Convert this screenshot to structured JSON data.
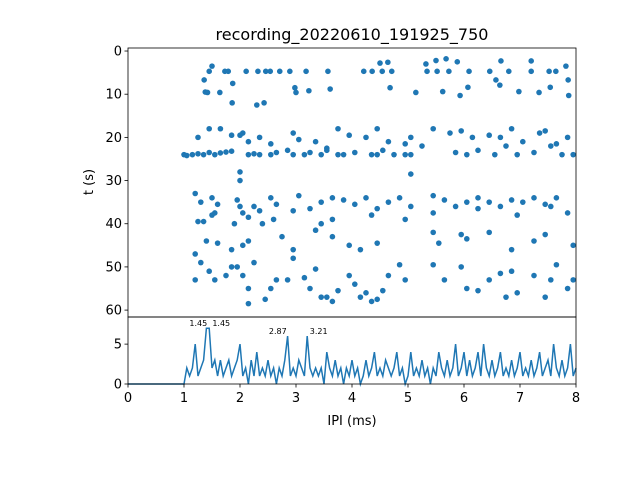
{
  "chart_data": [
    {
      "type": "scatter",
      "title": "recording_20220610_191925_750",
      "xlabel": "",
      "ylabel": "t (s)",
      "xlim": [
        0,
        8
      ],
      "ylim": [
        61.6,
        -0.7
      ],
      "yticks": [
        "0",
        "10",
        "20",
        "30",
        "40",
        "50",
        "60"
      ],
      "color": "#1f77b4",
      "points": [
        [
          1.45,
          4.7
        ],
        [
          1.73,
          4.7
        ],
        [
          1.79,
          4.7
        ],
        [
          2.11,
          4.7
        ],
        [
          2.32,
          4.7
        ],
        [
          2.46,
          4.7
        ],
        [
          2.54,
          4.7
        ],
        [
          2.71,
          4.7
        ],
        [
          2.89,
          4.7
        ],
        [
          3.18,
          4.7
        ],
        [
          3.57,
          4.7
        ],
        [
          4.21,
          4.7
        ],
        [
          4.36,
          4.7
        ],
        [
          4.54,
          4.7
        ],
        [
          4.71,
          4.7
        ],
        [
          5.34,
          4.7
        ],
        [
          5.52,
          4.7
        ],
        [
          5.73,
          4.7
        ],
        [
          6.09,
          4.7
        ],
        [
          6.46,
          4.7
        ],
        [
          6.8,
          4.7
        ],
        [
          7.2,
          4.7
        ],
        [
          7.52,
          4.7
        ],
        [
          7.64,
          4.7
        ],
        [
          1.5,
          3.5
        ],
        [
          4.5,
          2.8
        ],
        [
          4.64,
          2.6
        ],
        [
          5.32,
          3
        ],
        [
          5.5,
          2.2
        ],
        [
          5.68,
          1.8
        ],
        [
          5.88,
          2.5
        ],
        [
          6.66,
          2.3
        ],
        [
          7.2,
          2.3
        ],
        [
          7.82,
          3.5
        ],
        [
          1.36,
          6.7
        ],
        [
          1.38,
          9.5
        ],
        [
          1.42,
          9.6
        ],
        [
          1.64,
          9.6
        ],
        [
          1.86,
          12
        ],
        [
          2.43,
          12
        ],
        [
          2.98,
          8.5
        ],
        [
          3.0,
          9.6
        ],
        [
          3.23,
          9.2
        ],
        [
          3.61,
          8.8
        ],
        [
          4.68,
          8.5
        ],
        [
          5.14,
          9.6
        ],
        [
          5.62,
          9.4
        ],
        [
          5.93,
          10.3
        ],
        [
          6.07,
          8.4
        ],
        [
          6.57,
          6.7
        ],
        [
          6.64,
          7.9
        ],
        [
          6.98,
          9.4
        ],
        [
          7.34,
          9.6
        ],
        [
          7.54,
          8.4
        ],
        [
          7.87,
          10.3
        ],
        [
          7.86,
          6.7
        ],
        [
          1.87,
          7.5
        ],
        [
          2.3,
          12.5
        ],
        [
          1.0,
          24
        ],
        [
          1.05,
          24.2
        ],
        [
          1.15,
          24
        ],
        [
          1.25,
          23.8
        ],
        [
          1.35,
          24
        ],
        [
          1.45,
          23.5
        ],
        [
          1.55,
          24
        ],
        [
          1.65,
          23.6
        ],
        [
          1.75,
          23.4
        ],
        [
          1.85,
          23.2
        ],
        [
          2.15,
          24
        ],
        [
          2.25,
          23.8
        ],
        [
          2.35,
          24
        ],
        [
          2.55,
          24
        ],
        [
          2.65,
          23.5
        ],
        [
          2.85,
          23
        ],
        [
          2.95,
          24
        ],
        [
          3.15,
          24
        ],
        [
          3.25,
          23.5
        ],
        [
          3.45,
          24
        ],
        [
          3.55,
          23
        ],
        [
          3.75,
          24
        ],
        [
          3.85,
          24
        ],
        [
          4.05,
          23.5
        ],
        [
          4.35,
          24
        ],
        [
          4.45,
          24
        ],
        [
          4.55,
          23
        ],
        [
          4.75,
          24
        ],
        [
          4.95,
          24
        ],
        [
          5.05,
          24
        ],
        [
          5.25,
          22
        ],
        [
          5.85,
          23.5
        ],
        [
          6.05,
          24
        ],
        [
          6.25,
          23
        ],
        [
          6.55,
          24
        ],
        [
          6.75,
          22
        ],
        [
          6.95,
          24
        ],
        [
          7.25,
          23.5
        ],
        [
          7.55,
          22
        ],
        [
          7.75,
          24
        ],
        [
          7.95,
          24
        ],
        [
          1.45,
          18
        ],
        [
          1.65,
          18
        ],
        [
          1.85,
          19.5
        ],
        [
          2.05,
          19
        ],
        [
          2.15,
          21
        ],
        [
          2.35,
          20
        ],
        [
          2.55,
          21.5
        ],
        [
          2.95,
          19
        ],
        [
          3.05,
          20.5
        ],
        [
          3.35,
          21
        ],
        [
          3.75,
          18
        ],
        [
          3.95,
          19.5
        ],
        [
          4.25,
          20
        ],
        [
          4.45,
          18
        ],
        [
          4.65,
          21
        ],
        [
          5.05,
          20
        ],
        [
          5.45,
          18
        ],
        [
          5.75,
          19
        ],
        [
          5.95,
          18.5
        ],
        [
          6.15,
          20
        ],
        [
          6.45,
          19.5
        ],
        [
          6.85,
          18
        ],
        [
          7.05,
          21
        ],
        [
          7.35,
          19
        ],
        [
          7.65,
          21.5
        ],
        [
          7.85,
          20
        ],
        [
          1.25,
          20
        ],
        [
          2.0,
          19.5
        ],
        [
          3.55,
          22.5
        ],
        [
          4.95,
          21.5
        ],
        [
          6.65,
          20
        ],
        [
          7.45,
          18.5
        ],
        [
          2.0,
          28
        ],
        [
          2.0,
          30
        ],
        [
          5.05,
          28.5
        ],
        [
          1.2,
          33
        ],
        [
          1.3,
          35
        ],
        [
          1.5,
          34
        ],
        [
          1.6,
          35.5
        ],
        [
          1.55,
          37.5
        ],
        [
          1.95,
          34.5
        ],
        [
          2.0,
          36
        ],
        [
          2.05,
          37.5
        ],
        [
          2.25,
          36
        ],
        [
          2.35,
          37
        ],
        [
          2.55,
          34
        ],
        [
          2.65,
          35.5
        ],
        [
          2.95,
          37
        ],
        [
          3.05,
          33.5
        ],
        [
          3.25,
          36.5
        ],
        [
          3.45,
          35
        ],
        [
          3.65,
          34
        ],
        [
          3.85,
          34.5
        ],
        [
          4.05,
          35.5
        ],
        [
          4.25,
          34
        ],
        [
          4.45,
          36.5
        ],
        [
          4.65,
          35
        ],
        [
          4.85,
          34
        ],
        [
          5.05,
          36
        ],
        [
          5.45,
          33.5
        ],
        [
          5.65,
          34.5
        ],
        [
          5.85,
          36
        ],
        [
          6.05,
          35
        ],
        [
          6.25,
          34
        ],
        [
          6.45,
          35
        ],
        [
          6.65,
          36
        ],
        [
          6.85,
          34.5
        ],
        [
          7.05,
          35
        ],
        [
          7.25,
          34
        ],
        [
          7.45,
          35.5
        ],
        [
          7.65,
          34
        ],
        [
          7.85,
          37.5
        ],
        [
          1.25,
          39.5
        ],
        [
          1.35,
          39.5
        ],
        [
          1.5,
          38
        ],
        [
          1.9,
          40
        ],
        [
          2.15,
          38.5
        ],
        [
          2.6,
          39
        ],
        [
          3.45,
          40
        ],
        [
          3.65,
          39
        ],
        [
          4.35,
          38
        ],
        [
          4.95,
          39
        ],
        [
          5.45,
          37.5
        ],
        [
          6.25,
          36.5
        ],
        [
          6.95,
          38
        ],
        [
          7.55,
          36
        ],
        [
          2.4,
          40
        ],
        [
          1.4,
          44
        ],
        [
          1.6,
          44.5
        ],
        [
          1.85,
          46
        ],
        [
          2.05,
          45
        ],
        [
          2.15,
          44
        ],
        [
          2.75,
          43
        ],
        [
          2.95,
          46
        ],
        [
          3.35,
          41.5
        ],
        [
          3.65,
          43
        ],
        [
          3.95,
          45
        ],
        [
          4.15,
          46
        ],
        [
          4.45,
          44.5
        ],
        [
          5.45,
          42
        ],
        [
          5.55,
          44.5
        ],
        [
          5.95,
          42.5
        ],
        [
          6.05,
          43.5
        ],
        [
          6.45,
          42
        ],
        [
          6.85,
          46
        ],
        [
          7.25,
          44
        ],
        [
          7.45,
          42.5
        ],
        [
          7.95,
          45
        ],
        [
          1.2,
          47
        ],
        [
          1.3,
          49
        ],
        [
          1.2,
          53
        ],
        [
          1.45,
          51
        ],
        [
          1.55,
          53
        ],
        [
          1.75,
          52
        ],
        [
          1.85,
          50
        ],
        [
          1.95,
          50
        ],
        [
          2.05,
          52
        ],
        [
          2.15,
          55
        ],
        [
          2.25,
          49
        ],
        [
          2.45,
          57.5
        ],
        [
          2.55,
          55
        ],
        [
          2.65,
          53
        ],
        [
          2.85,
          53
        ],
        [
          2.95,
          48
        ],
        [
          3.15,
          52.5
        ],
        [
          3.25,
          55
        ],
        [
          3.35,
          50.5
        ],
        [
          3.55,
          57
        ],
        [
          3.75,
          55.5
        ],
        [
          3.95,
          52
        ],
        [
          4.05,
          54
        ],
        [
          4.25,
          56
        ],
        [
          4.45,
          57.5
        ],
        [
          4.55,
          55.5
        ],
        [
          4.65,
          52
        ],
        [
          4.85,
          49.5
        ],
        [
          4.95,
          53
        ],
        [
          5.45,
          49.5
        ],
        [
          5.65,
          53
        ],
        [
          5.95,
          50
        ],
        [
          6.05,
          55
        ],
        [
          6.25,
          55.5
        ],
        [
          6.45,
          53
        ],
        [
          6.65,
          51.5
        ],
        [
          6.85,
          51
        ],
        [
          6.95,
          56
        ],
        [
          7.25,
          52
        ],
        [
          7.45,
          57
        ],
        [
          7.65,
          49.5
        ],
        [
          7.85,
          55
        ],
        [
          7.95,
          53
        ],
        [
          3.65,
          58
        ],
        [
          4.35,
          58
        ],
        [
          2.15,
          58.5
        ],
        [
          3.45,
          57
        ],
        [
          4.15,
          57
        ],
        [
          6.75,
          57
        ],
        [
          7.55,
          53
        ]
      ]
    },
    {
      "type": "line",
      "title": "",
      "xlabel": "IPI (ms)",
      "ylabel": "",
      "xlim": [
        0,
        8
      ],
      "ylim": [
        0,
        8.4
      ],
      "xticks": [
        "0",
        "1",
        "2",
        "3",
        "4",
        "5",
        "6",
        "7",
        "8"
      ],
      "yticks": [
        "0",
        "5"
      ],
      "color": "#1f77b4",
      "x_start": 0,
      "x_step": 0.05,
      "values": [
        0,
        0,
        0,
        0,
        0,
        0,
        0,
        0,
        0,
        0,
        0,
        0,
        0,
        0,
        0,
        0,
        0,
        0,
        0,
        0,
        0,
        2,
        1,
        2,
        5,
        1,
        2,
        3,
        7,
        7,
        2,
        3,
        1,
        3,
        1,
        2,
        3,
        1,
        2,
        3,
        5,
        1,
        2,
        0,
        3,
        1,
        4,
        1,
        2,
        1,
        3,
        1,
        2,
        0,
        2,
        1,
        3,
        6,
        1,
        2,
        1,
        3,
        2,
        1,
        6,
        2,
        1,
        2,
        1,
        2,
        0,
        4,
        2,
        1,
        3,
        1,
        2,
        0,
        2,
        1,
        3,
        1,
        2,
        0,
        1,
        3,
        1,
        2,
        4,
        1,
        2,
        1,
        3,
        2,
        1,
        2,
        4,
        1,
        2,
        0,
        1,
        4,
        1,
        2,
        1,
        3,
        1,
        2,
        0,
        2,
        1,
        4,
        2,
        1,
        3,
        1,
        2,
        5,
        1,
        2,
        4,
        1,
        3,
        1,
        2,
        4,
        1,
        5,
        2,
        1,
        3,
        1,
        2,
        4,
        1,
        2,
        1,
        3,
        1,
        2,
        4,
        1,
        2,
        1,
        3,
        1,
        2,
        4,
        1,
        2,
        3,
        1,
        5,
        2,
        1,
        3,
        1,
        2,
        5,
        1,
        2
      ],
      "annotations": [
        {
          "text": "1.45",
          "x": 1.45,
          "y": 7
        },
        {
          "text": "1.45",
          "x": 1.47,
          "y": 7
        },
        {
          "text": "2.87",
          "x": 2.87,
          "y": 6
        },
        {
          "text": "3.21",
          "x": 3.21,
          "y": 6
        }
      ]
    }
  ]
}
